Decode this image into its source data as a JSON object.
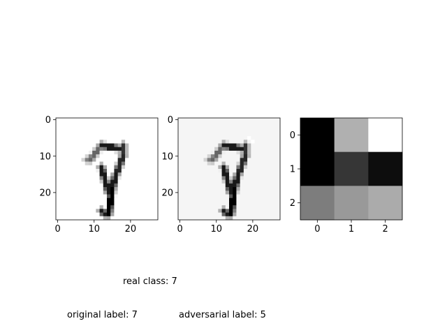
{
  "chart_data": [
    {
      "type": "heatmap",
      "panel": "original",
      "rows": 28,
      "cols": 28,
      "xlim": [
        -0.5,
        27.5
      ],
      "ylim": [
        27.5,
        -0.5
      ],
      "xticks": [
        "0",
        "10",
        "20"
      ],
      "yticks": [
        "0",
        "10",
        "20"
      ],
      "digit_shown": "7",
      "colormap": "gray_r",
      "background": 0,
      "strokes": [
        {
          "from": [
            12,
            13
          ],
          "to": [
            14,
            20
          ],
          "w": 0.9
        },
        {
          "from": [
            17,
            8
          ],
          "to": [
            12,
            7
          ],
          "w": 0.9
        },
        {
          "from": [
            12,
            7
          ],
          "to": [
            9,
            11
          ],
          "w": 0.6
        },
        {
          "from": [
            9,
            11
          ],
          "to": [
            8,
            11
          ],
          "w": 0.5
        },
        {
          "from": [
            18,
            7
          ],
          "to": [
            18,
            10
          ],
          "w": 0.8
        },
        {
          "from": [
            18,
            10
          ],
          "to": [
            16,
            15
          ],
          "w": 0.85
        },
        {
          "from": [
            16,
            15
          ],
          "to": [
            15,
            19
          ],
          "w": 0.9
        },
        {
          "from": [
            15,
            19
          ],
          "to": [
            14,
            26
          ],
          "w": 1.0
        },
        {
          "from": [
            12,
            25
          ],
          "to": [
            13,
            26
          ],
          "w": 0.9
        }
      ]
    },
    {
      "type": "heatmap",
      "panel": "adversarial",
      "rows": 28,
      "cols": 28,
      "xlim": [
        -0.5,
        27.5
      ],
      "ylim": [
        27.5,
        -0.5
      ],
      "xticks": [
        "0",
        "10",
        "20"
      ],
      "yticks": [
        "0",
        "10",
        "20"
      ],
      "digit_shown": "7",
      "colormap": "gray_r",
      "background": 0.04,
      "bright_pixels": [
        [
          19,
          5
        ],
        [
          20,
          6
        ]
      ],
      "strokes": [
        {
          "from": [
            12,
            13
          ],
          "to": [
            14,
            20
          ],
          "w": 0.9
        },
        {
          "from": [
            17,
            8
          ],
          "to": [
            12,
            7
          ],
          "w": 0.9
        },
        {
          "from": [
            12,
            7
          ],
          "to": [
            9,
            11
          ],
          "w": 0.6
        },
        {
          "from": [
            9,
            11
          ],
          "to": [
            8,
            11
          ],
          "w": 0.5
        },
        {
          "from": [
            18,
            7
          ],
          "to": [
            18,
            10
          ],
          "w": 0.8
        },
        {
          "from": [
            18,
            10
          ],
          "to": [
            16,
            15
          ],
          "w": 0.85
        },
        {
          "from": [
            16,
            15
          ],
          "to": [
            15,
            19
          ],
          "w": 0.9
        },
        {
          "from": [
            15,
            19
          ],
          "to": [
            14,
            26
          ],
          "w": 1.0
        },
        {
          "from": [
            12,
            25
          ],
          "to": [
            13,
            26
          ],
          "w": 0.9
        }
      ]
    },
    {
      "type": "heatmap",
      "panel": "kernel",
      "rows": 3,
      "cols": 3,
      "xlim": [
        -0.5,
        2.5
      ],
      "ylim": [
        2.5,
        -0.5
      ],
      "xticks": [
        "0",
        "1",
        "2"
      ],
      "yticks": [
        "0",
        "1",
        "2"
      ],
      "colormap": "gray",
      "values": [
        [
          0.0,
          0.69,
          1.0
        ],
        [
          0.0,
          0.21,
          0.05
        ],
        [
          0.49,
          0.6,
          0.67
        ]
      ]
    }
  ],
  "annotations": {
    "real_class": "real class: 7",
    "original_label": "original label: 7",
    "adversarial_label": "adversarial label: 5"
  }
}
